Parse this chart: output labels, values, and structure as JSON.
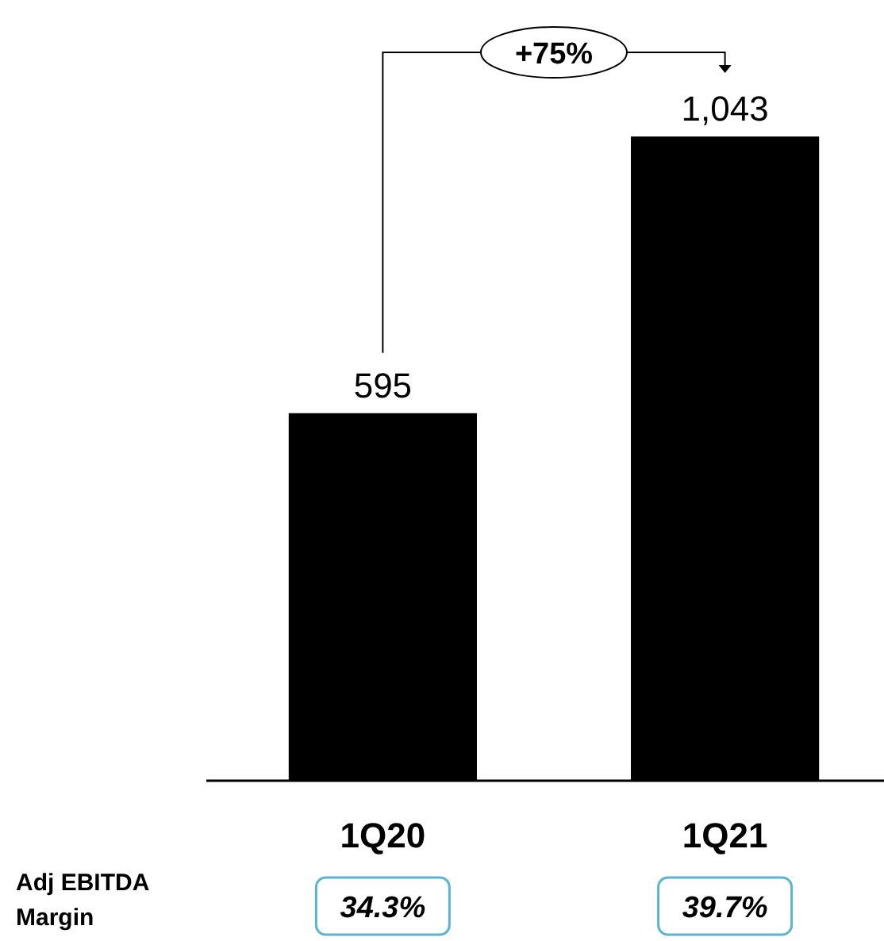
{
  "chart_data": {
    "type": "bar",
    "categories": [
      "1Q20",
      "1Q21"
    ],
    "values": [
      595,
      1043
    ],
    "color": "#000000",
    "value_labels": [
      "595",
      "1,043"
    ],
    "annotations": [
      "+75%",
      "Adj EBITDA Margin",
      "34.3%",
      "39.7%"
    ]
  }
}
